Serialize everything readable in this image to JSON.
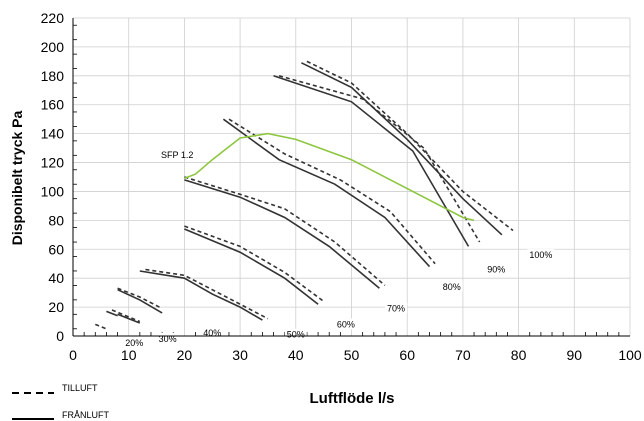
{
  "chart_data": {
    "type": "line",
    "ylabel": "Disponibelt tryck Pa",
    "xlabel": "Luftflöde l/s",
    "xlim": [
      0,
      100
    ],
    "ylim": [
      0,
      220
    ],
    "x_ticks": [
      0,
      10,
      20,
      30,
      40,
      50,
      60,
      70,
      80,
      90,
      100
    ],
    "y_ticks": [
      0,
      20,
      40,
      60,
      80,
      100,
      120,
      140,
      160,
      180,
      200,
      220
    ],
    "grid": true,
    "legend": [
      {
        "name": "TILLUFT",
        "style": "dashed"
      },
      {
        "name": "FRÅNLUFT",
        "style": "solid"
      }
    ],
    "colors": {
      "curves": "#333333",
      "sfp": "#8dc63f"
    },
    "sfp_label": "SFP 1.2",
    "fan_speed_labels": [
      {
        "text": "20%",
        "x": 11,
        "y": -5
      },
      {
        "text": "30%",
        "x": 17,
        "y": -2
      },
      {
        "text": "40%",
        "x": 25,
        "y": 2
      },
      {
        "text": "50%",
        "x": 40,
        "y": 1
      },
      {
        "text": "60%",
        "x": 49,
        "y": 8
      },
      {
        "text": "70%",
        "x": 58,
        "y": 19
      },
      {
        "text": "80%",
        "x": 68,
        "y": 34
      },
      {
        "text": "90%",
        "x": 76,
        "y": 46
      },
      {
        "text": "100%",
        "x": 84,
        "y": 56
      }
    ],
    "series": [
      {
        "style": "dashed",
        "speed": "20%",
        "x": [
          4,
          6
        ],
        "y": [
          8,
          5
        ]
      },
      {
        "style": "solid",
        "speed": "20%",
        "x": [
          6,
          8
        ],
        "y": [
          17,
          14
        ]
      },
      {
        "style": "dashed",
        "speed": "30%",
        "x": [
          7,
          12
        ],
        "y": [
          18,
          10
        ]
      },
      {
        "style": "solid",
        "speed": "30%",
        "x": [
          8,
          12
        ],
        "y": [
          15,
          9
        ]
      },
      {
        "style": "dashed",
        "speed": "40%",
        "x": [
          8,
          12,
          16
        ],
        "y": [
          33,
          27,
          19
        ]
      },
      {
        "style": "solid",
        "speed": "40%",
        "x": [
          8,
          12,
          16
        ],
        "y": [
          32,
          25,
          16
        ]
      },
      {
        "style": "dashed",
        "speed": "50%",
        "x": [
          13,
          20,
          25,
          30,
          35
        ],
        "y": [
          46,
          42,
          32,
          22,
          12
        ]
      },
      {
        "style": "solid",
        "speed": "50%",
        "x": [
          12,
          20,
          25,
          30,
          34
        ],
        "y": [
          45,
          40,
          29,
          20,
          11
        ]
      },
      {
        "style": "dashed",
        "speed": "60%",
        "x": [
          20,
          30,
          38,
          45
        ],
        "y": [
          76,
          62,
          44,
          24
        ]
      },
      {
        "style": "solid",
        "speed": "60%",
        "x": [
          20,
          30,
          38,
          44
        ],
        "y": [
          74,
          58,
          40,
          22
        ]
      },
      {
        "style": "dashed",
        "speed": "70%",
        "x": [
          20,
          30,
          38,
          47,
          56
        ],
        "y": [
          110,
          98,
          88,
          65,
          35
        ]
      },
      {
        "style": "solid",
        "speed": "70%",
        "x": [
          20,
          30,
          38,
          46,
          55
        ],
        "y": [
          108,
          96,
          82,
          62,
          33
        ]
      },
      {
        "style": "dashed",
        "speed": "80%",
        "x": [
          28,
          38,
          48,
          57,
          65
        ],
        "y": [
          150,
          126,
          108,
          86,
          50
        ]
      },
      {
        "style": "solid",
        "speed": "80%",
        "x": [
          27,
          37,
          47,
          56,
          64
        ],
        "y": [
          150,
          122,
          105,
          82,
          48
        ]
      },
      {
        "style": "dashed",
        "speed": "90%",
        "x": [
          37,
          52,
          63,
          73
        ],
        "y": [
          180,
          164,
          130,
          65
        ]
      },
      {
        "style": "solid",
        "speed": "90%",
        "x": [
          36,
          50,
          61,
          71
        ],
        "y": [
          180,
          162,
          128,
          62
        ]
      },
      {
        "style": "dashed",
        "speed": "100%",
        "x": [
          42,
          50,
          60,
          70,
          79
        ],
        "y": [
          190,
          175,
          140,
          100,
          73
        ]
      },
      {
        "style": "solid",
        "speed": "100%",
        "x": [
          41,
          50,
          60,
          70,
          77
        ],
        "y": [
          189,
          172,
          136,
          95,
          70
        ]
      },
      {
        "style": "sfp",
        "x": [
          20,
          22,
          25,
          30,
          35,
          40,
          50,
          60,
          70,
          72
        ],
        "y": [
          109,
          112,
          122,
          137,
          140,
          136,
          122,
          102,
          82,
          80
        ]
      }
    ]
  }
}
